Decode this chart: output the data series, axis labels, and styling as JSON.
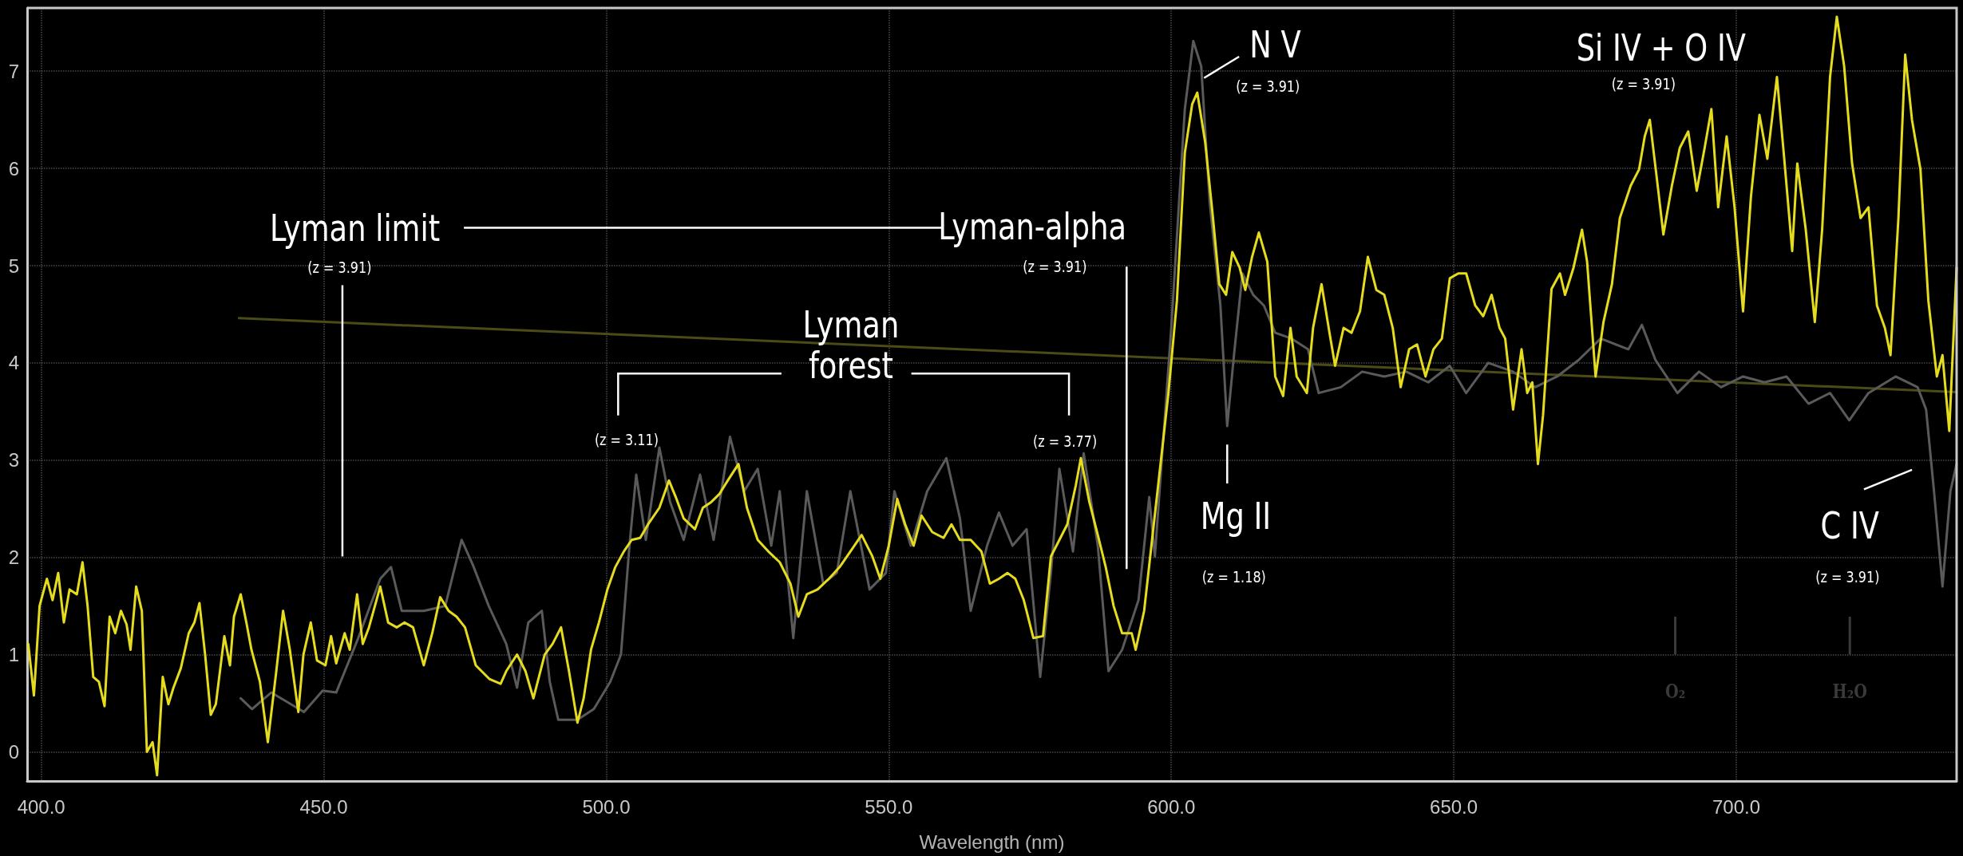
{
  "chart_data": {
    "type": "line",
    "xlabel": "Wavelength (nm)",
    "xlim": [
      397.5,
      739
    ],
    "xticks": [
      {
        "value": 400,
        "label": "400.0"
      },
      {
        "value": 450,
        "label": "450.0"
      },
      {
        "value": 500,
        "label": "500.0"
      },
      {
        "value": 550,
        "label": "550.0"
      },
      {
        "value": 600,
        "label": "600.0"
      },
      {
        "value": 650,
        "label": "650.0"
      },
      {
        "value": 700,
        "label": "700.0"
      }
    ],
    "ylim": [
      -0.3,
      7.65
    ],
    "yticks": [
      0,
      1,
      2,
      3,
      4,
      5,
      6,
      7
    ],
    "grid": true,
    "marker": "none",
    "line_style": "solid",
    "series": [
      {
        "color": "#4b4b16",
        "x": [
          435,
          739
        ],
        "values": [
          4.46,
          3.7
        ]
      },
      {
        "color": "#5a5a5a",
        "x": [
          435.3,
          437.3,
          440.7,
          446.5,
          449.8,
          452.2,
          456.1,
          460,
          461.9,
          463.8,
          467.7,
          471.5,
          474.4,
          476.4,
          479.2,
          482.3,
          484.2,
          486.2,
          488.6,
          490,
          491.5,
          494.9,
          497.8,
          500.7,
          502.6,
          504.1,
          505.3,
          507,
          509.4,
          511.3,
          513.7,
          516.6,
          519,
          521.9,
          524.4,
          526.8,
          529.2,
          530.7,
          533.1,
          535.5,
          538.4,
          540.8,
          543.2,
          546.6,
          549.5,
          551,
          553.9,
          556.8,
          560.2,
          562.6,
          564.5,
          567.4,
          569.5,
          571.9,
          574.4,
          576.8,
          578.7,
          580.2,
          582.6,
          584.5,
          587,
          588.9,
          591.3,
          594.2,
          596.1,
          597.1,
          600,
          602.4,
          603.9,
          605.3,
          606.8,
          608.7,
          609.9,
          611.1,
          612.6,
          614.5,
          616.4,
          618.4,
          621.3,
          624.2,
          626.1,
          630,
          633.8,
          637.7,
          641.6,
          645.5,
          649.3,
          652.2,
          656.1,
          660.5,
          664.4,
          668.3,
          672.1,
          676,
          680.9,
          683.3,
          685.7,
          689.6,
          693.4,
          697.3,
          701.2,
          705,
          708.9,
          712.8,
          716.6,
          720,
          723.4,
          728.2,
          732.1,
          733.6,
          735,
          736.5,
          737.9,
          739
        ],
        "values": [
          0.55,
          0.44,
          0.61,
          0.41,
          0.63,
          0.61,
          1.17,
          1.78,
          1.9,
          1.45,
          1.45,
          1.5,
          2.18,
          1.92,
          1.5,
          1.11,
          0.66,
          1.33,
          1.45,
          0.72,
          0.33,
          0.33,
          0.44,
          0.72,
          1,
          2.12,
          2.85,
          2.18,
          3.13,
          2.57,
          2.18,
          2.85,
          2.18,
          3.24,
          2.68,
          2.91,
          2.12,
          2.68,
          1.17,
          2.68,
          1.73,
          1.84,
          2.68,
          1.67,
          1.84,
          2.68,
          2.12,
          2.68,
          3.02,
          2.4,
          1.45,
          2.12,
          2.46,
          2.12,
          2.29,
          0.77,
          1.84,
          2.91,
          2.06,
          3.07,
          2.12,
          0.83,
          1.05,
          1.56,
          2.62,
          2.01,
          4.36,
          6.61,
          7.31,
          7.05,
          5.65,
          4.59,
          3.35,
          4.08,
          4.92,
          4.7,
          4.59,
          4.31,
          4.25,
          4.14,
          3.69,
          3.75,
          3.91,
          3.86,
          3.91,
          3.8,
          3.97,
          3.69,
          4,
          3.91,
          3.75,
          3.86,
          4.03,
          4.25,
          4.14,
          4.39,
          4.03,
          3.69,
          3.91,
          3.75,
          3.86,
          3.8,
          3.86,
          3.58,
          3.69,
          3.41,
          3.69,
          3.86,
          3.75,
          3.52,
          2.68,
          1.7,
          2.68,
          2.96
        ]
      },
      {
        "color": "#e6dc1e",
        "x": [
          397.7,
          398.7,
          399.7,
          401,
          402,
          403,
          404,
          405,
          406.3,
          407.3,
          408.2,
          409.2,
          410.2,
          411.2,
          412.1,
          413.1,
          414.1,
          415.1,
          415.8,
          416.8,
          417.8,
          418.7,
          419.7,
          420.5,
          421.5,
          422.5,
          423.4,
          424.7,
          426.1,
          427.1,
          428,
          429,
          430,
          430.9,
          432.4,
          433.4,
          434.1,
          435.3,
          436.3,
          437.2,
          438.7,
          440.1,
          441.6,
          442.8,
          444,
          445.5,
          446.4,
          447.7,
          448.8,
          450.3,
          451.3,
          452.2,
          453.7,
          454.6,
          455.9,
          456.9,
          458,
          460,
          461.4,
          462.9,
          464.3,
          465.8,
          467.7,
          469.2,
          470.6,
          472.1,
          473.5,
          475,
          476.9,
          479.3,
          481.3,
          482.3,
          484.2,
          485.7,
          487.1,
          489.1,
          490.5,
          492,
          493.4,
          494.9,
          496,
          497.3,
          498.7,
          500.2,
          501.6,
          503.1,
          504.5,
          506,
          507.4,
          509.4,
          511.1,
          512.3,
          513.7,
          515.7,
          517.1,
          518.6,
          520,
          521.5,
          523.4,
          524.9,
          526.8,
          528.7,
          530.7,
          532.6,
          534,
          535.5,
          537.4,
          539.4,
          541.3,
          543.2,
          545.2,
          547.1,
          548.5,
          550,
          551.5,
          552.9,
          554.4,
          555.8,
          557.7,
          559.7,
          561.1,
          562.6,
          564.5,
          566.4,
          567.9,
          569.5,
          571,
          572.4,
          573.9,
          575.6,
          577.3,
          578.7,
          580.2,
          581.6,
          583.1,
          584,
          585.5,
          587,
          588.4,
          589.8,
          591.3,
          593,
          593.7,
          595.2,
          596.6,
          598.1,
          599.5,
          601,
          602.4,
          603.7,
          604.6,
          606,
          607.3,
          608.5,
          609.7,
          610.8,
          612.1,
          613.1,
          614.3,
          615.5,
          617,
          618.4,
          619.8,
          621.1,
          622.2,
          624,
          625.1,
          626.6,
          628,
          629,
          630.5,
          631.9,
          633.4,
          634.8,
          636.3,
          637.7,
          639.2,
          640.6,
          642.1,
          643.5,
          645,
          646.4,
          647.9,
          649.3,
          650.8,
          652.2,
          653.8,
          655.2,
          656.7,
          658.1,
          659.1,
          660.5,
          662,
          663,
          663.9,
          664.9,
          665.8,
          667.3,
          668.8,
          669.7,
          671.2,
          672.7,
          673.6,
          675.1,
          676.5,
          678,
          679.4,
          681.3,
          682.8,
          683.8,
          684.7,
          686.2,
          687.1,
          688.6,
          690,
          691.5,
          693,
          694.4,
          695.6,
          696.8,
          698.3,
          699.7,
          701.2,
          702.6,
          704.1,
          705.5,
          707.2,
          708.4,
          709.9,
          710.8,
          712.3,
          713.9,
          715.2,
          716.6,
          717.8,
          719.1,
          720.5,
          722,
          723.4,
          724.9,
          726.3,
          727.3,
          728.7,
          729.9,
          731.1,
          732.6,
          734,
          735.5,
          736.5,
          737.7,
          739
        ],
        "values": [
          1.11,
          0.58,
          1.5,
          1.78,
          1.56,
          1.84,
          1.33,
          1.67,
          1.62,
          1.95,
          1.5,
          0.77,
          0.72,
          0.47,
          1.39,
          1.22,
          1.45,
          1.31,
          1.05,
          1.7,
          1.45,
          0,
          0.1,
          -0.24,
          0.77,
          0.49,
          0.66,
          0.86,
          1.22,
          1.33,
          1.53,
          1,
          0.38,
          0.49,
          1.19,
          0.89,
          1.39,
          1.62,
          1.33,
          1.05,
          0.72,
          0.1,
          0.83,
          1.45,
          1.05,
          0.41,
          1,
          1.33,
          0.94,
          0.89,
          1.19,
          0.91,
          1.22,
          1.05,
          1.62,
          1.11,
          1.28,
          1.7,
          1.33,
          1.28,
          1.33,
          1.28,
          0.89,
          1.22,
          1.59,
          1.45,
          1.39,
          1.28,
          0.89,
          0.75,
          0.7,
          0.83,
          1,
          0.83,
          0.55,
          1,
          1.11,
          1.28,
          0.83,
          0.3,
          0.55,
          1.05,
          1.33,
          1.67,
          1.9,
          2.06,
          2.18,
          2.2,
          2.34,
          2.51,
          2.79,
          2.62,
          2.4,
          2.29,
          2.51,
          2.57,
          2.65,
          2.79,
          2.96,
          2.51,
          2.18,
          2.06,
          1.95,
          1.73,
          1.39,
          1.62,
          1.67,
          1.78,
          1.9,
          2.06,
          2.23,
          2.01,
          1.78,
          2.12,
          2.6,
          2.34,
          2.12,
          2.43,
          2.26,
          2.2,
          2.34,
          2.18,
          2.18,
          2.06,
          1.73,
          1.78,
          1.84,
          1.78,
          1.56,
          1.17,
          1.19,
          2.01,
          2.18,
          2.34,
          2.74,
          3.02,
          2.57,
          2.23,
          1.9,
          1.5,
          1.22,
          1.22,
          1.05,
          1.45,
          2.18,
          2.96,
          3.69,
          4.64,
          6.16,
          6.66,
          6.78,
          6.27,
          5.54,
          4.81,
          4.7,
          5.14,
          4.98,
          4.75,
          5.09,
          5.34,
          5.04,
          3.86,
          3.66,
          4.36,
          3.86,
          3.69,
          4.36,
          4.81,
          4.31,
          3.97,
          4.36,
          4.31,
          4.53,
          5.09,
          4.75,
          4.7,
          4.36,
          3.75,
          4.14,
          4.19,
          3.86,
          4.14,
          4.25,
          4.87,
          4.92,
          4.92,
          4.59,
          4.48,
          4.7,
          4.36,
          4.25,
          3.52,
          4.14,
          3.69,
          3.8,
          2.96,
          3.46,
          4.76,
          4.92,
          4.7,
          4.98,
          5.37,
          5.04,
          3.86,
          4.42,
          4.81,
          5.49,
          5.82,
          5.99,
          6.33,
          6.5,
          5.77,
          5.32,
          5.82,
          6.21,
          6.38,
          5.77,
          6.21,
          6.61,
          5.6,
          6.33,
          5.6,
          4.53,
          5.71,
          6.55,
          6.1,
          6.94,
          6.16,
          5.15,
          6.05,
          5.37,
          4.42,
          5.37,
          6.94,
          7.56,
          7.05,
          6.05,
          5.49,
          5.6,
          4.59,
          4.36,
          4.08,
          5.49,
          7.17,
          6.5,
          5.99,
          4.64,
          3.86,
          4.08,
          3.3,
          4.98
        ]
      }
    ],
    "annotations": [
      "Lyman limit",
      "(z = 3.91)",
      "Lyman-alpha",
      "(z = 3.91)",
      "Lyman forest",
      "(z = 3.11)",
      "(z = 3.77)",
      "N V",
      "(z = 3.91)",
      "Mg II",
      "(z = 1.18)",
      "Si IV + O IV",
      "(z = 3.91)",
      "C IV",
      "(z = 3.91)",
      "O₂",
      "H₂O"
    ]
  }
}
